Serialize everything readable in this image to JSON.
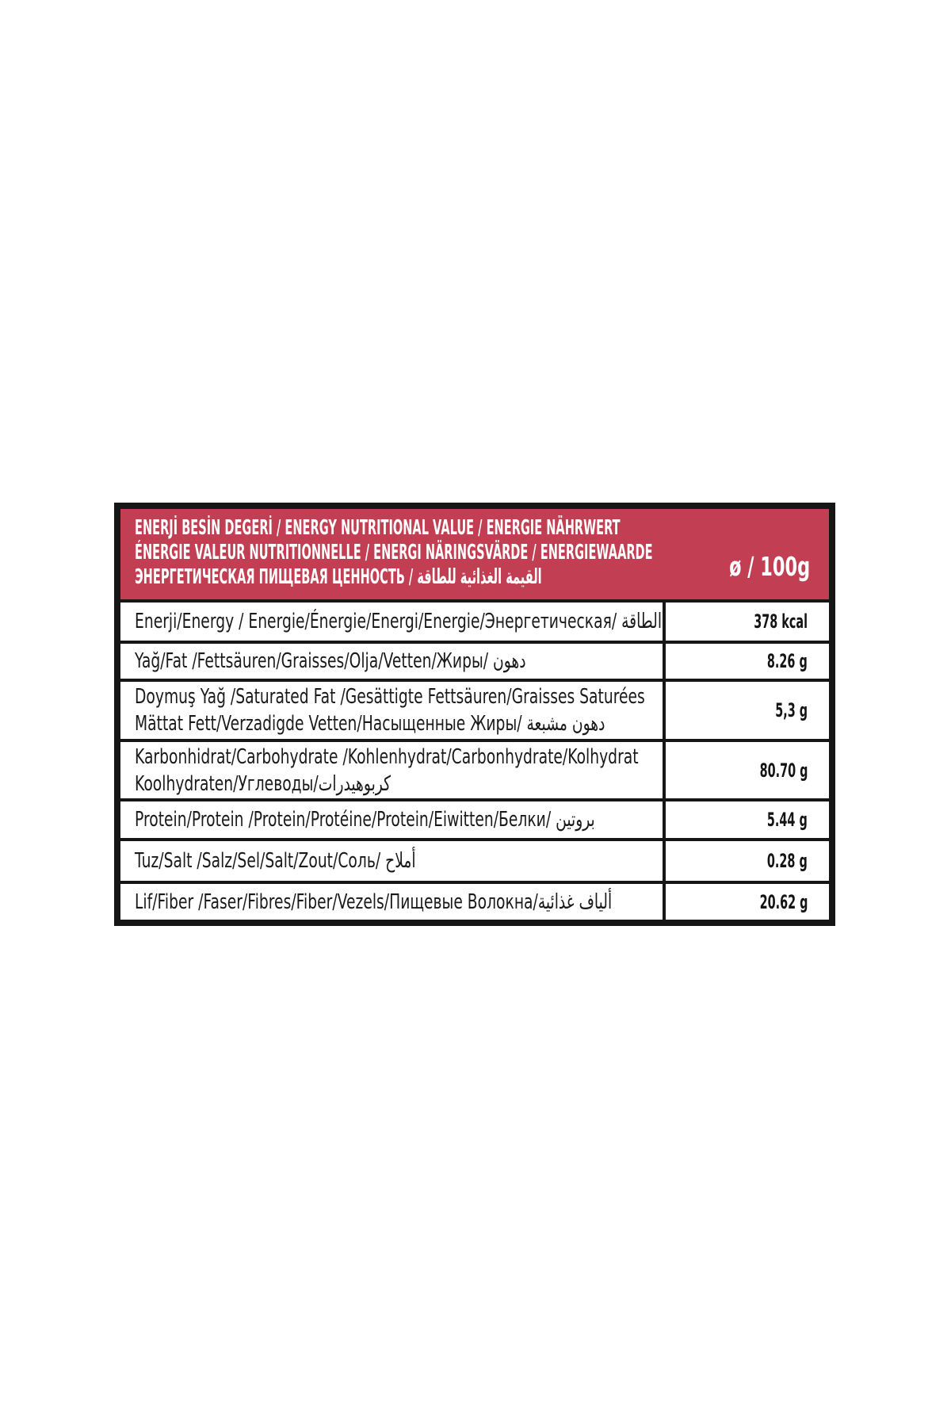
{
  "colors": {
    "page_background": "#ffffff",
    "header_background": "#c23e52",
    "header_text": "#ffffff",
    "border": "#161616",
    "row_text": "#1a1a1a"
  },
  "header": {
    "line1": "ENERJİ BESİN DEGERİ / ENERGY NUTRITIONAL VALUE / ENERGIE NÄHRWERT",
    "line2": "ÉNERGIE VALEUR NUTRITIONNELLE / ENERGI NÄRINGSVÄRDE / ENERGIEWAARDE",
    "line3": "ЭНЕРГЕТИЧЕСКАЯ ПИЩЕВАЯ ЦЕННОСТЬ / القيمة الغذائية للطاقة",
    "per_label": "ø / 100g"
  },
  "rows": [
    {
      "label_lines": [
        "Enerji/Energy / Energie/Énergie/Energi/Energie/Энергетическая/ الطاقة"
      ],
      "value": "378 kcal"
    },
    {
      "label_lines": [
        "Yağ/Fat /Fettsäuren/Graisses/Olja/Vetten/Жиры/ دهون"
      ],
      "value": "8.26 g"
    },
    {
      "label_lines": [
        "Doymuş Yağ /Saturated Fat /Gesättigte Fettsäuren/Graisses Saturées",
        "Mättat Fett/Verzadigde Vetten/Насыщенные Жиры/ دهون مشبعة"
      ],
      "value": "5,3 g"
    },
    {
      "label_lines": [
        "Karbonhidrat/Carbohydrate /Kohlenhydrat/Carbonhydrate/Kolhydrat",
        "Koolhydraten/Углеводы/كربوهيدرات"
      ],
      "value": "80.70 g"
    },
    {
      "label_lines": [
        "Protein/Protein /Protein/Protéine/Protein/Eiwitten/Белки/ بروتين"
      ],
      "value": "5.44 g"
    },
    {
      "label_lines": [
        "Tuz/Salt /Salz/Sel/Salt/Zout/Соль/ أملاح"
      ],
      "value": "0.28 g"
    },
    {
      "label_lines": [
        "Lif/Fiber /Faser/Fibres/Fiber/Vezels/Пищевые Волокна/ألياف غذائية"
      ],
      "value": "20.62 g"
    }
  ]
}
